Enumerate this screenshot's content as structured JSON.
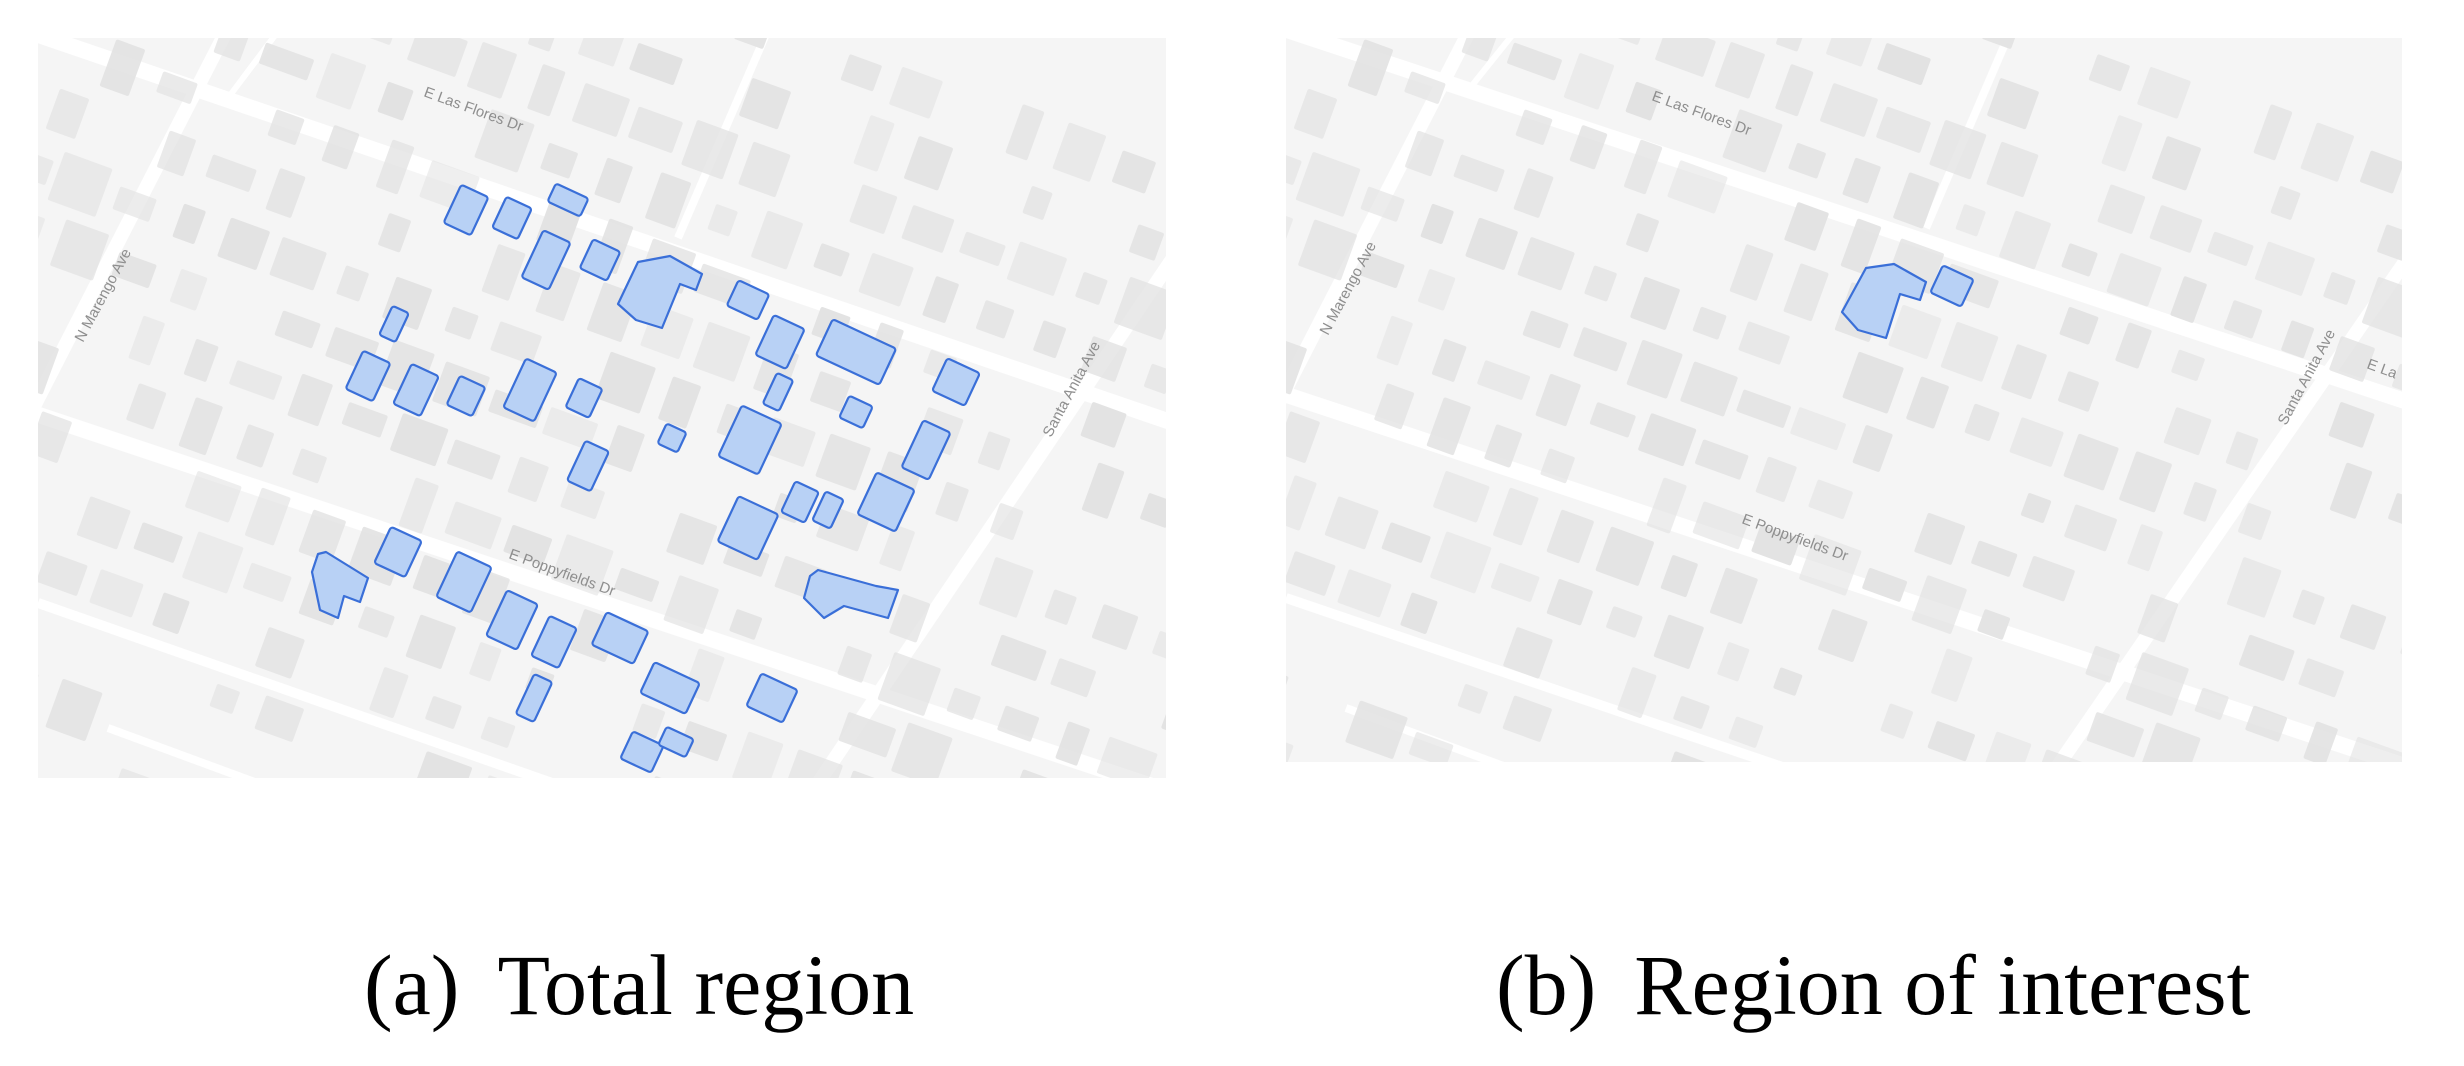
{
  "figure": {
    "panels": [
      {
        "tag": "(a)",
        "caption": "Total region",
        "highlight_count": 38
      },
      {
        "tag": "(b)",
        "caption": "Region of interest",
        "highlight_count": 2
      }
    ],
    "street_labels": {
      "top": "E Las Flores Dr",
      "middle": "E Poppyfields Dr",
      "left": "N Marengo Ave",
      "right": "Santa Anita Ave"
    },
    "panel_b_extra_label": "E La",
    "colors": {
      "map_background": "#f5f5f5",
      "road": "#ffffff",
      "building": "#e2e2e2",
      "highlight_fill": "#b8d1f5",
      "highlight_stroke": "#3a6fd8"
    }
  }
}
